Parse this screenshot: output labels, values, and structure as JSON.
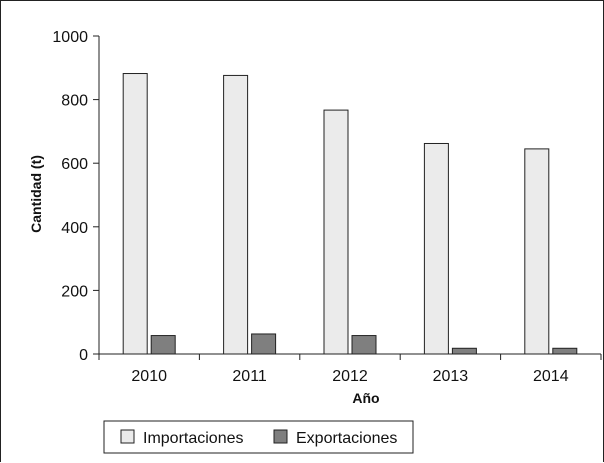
{
  "chart_data": {
    "type": "bar",
    "categories": [
      "2010",
      "2011",
      "2012",
      "2013",
      "2014"
    ],
    "series": [
      {
        "name": "Importaciones",
        "values": [
          882,
          876,
          767,
          662,
          645
        ],
        "color": "#ebebeb"
      },
      {
        "name": "Exportaciones",
        "values": [
          58,
          63,
          58,
          18,
          18
        ],
        "color": "#7f7f7f"
      }
    ],
    "xlabel": "Año",
    "ylabel": "Cantidad (t)",
    "ylim": [
      0,
      1000
    ],
    "yticks": [
      "0",
      "200",
      "400",
      "600",
      "800",
      "1000"
    ],
    "legend_position": "bottom-left",
    "grid": false
  }
}
